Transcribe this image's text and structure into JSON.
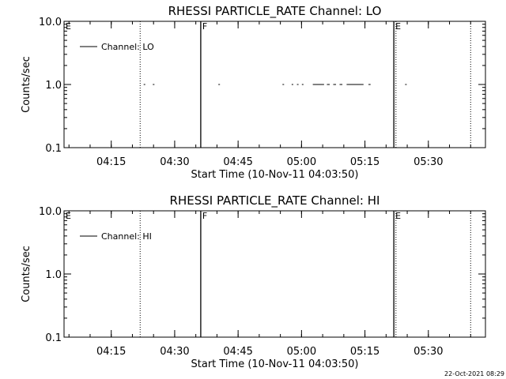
{
  "footer_timestamp": "22-Oct-2021 08:29",
  "chart_data": [
    {
      "type": "scatter",
      "title": "RHESSI PARTICLE_RATE Channel: LO",
      "xlabel": "Start Time (10-Nov-11 04:03:50)",
      "ylabel": "Counts/sec",
      "y_scale": "log",
      "ylim": [
        0.1,
        10.0
      ],
      "y_ticks": [
        "0.1",
        "1.0",
        "10.0"
      ],
      "xlim": [
        "04:03:50",
        "05:43:30"
      ],
      "x_ticks": [
        "04:15",
        "04:30",
        "04:45",
        "05:00",
        "05:15",
        "05:30"
      ],
      "legend": {
        "position": "top-left",
        "entries": [
          "Channel: LO"
        ]
      },
      "series": [
        {
          "name": "Channel: LO",
          "segments": [
            [
              "04:22:40",
              "04:22:55"
            ],
            [
              "04:24:50",
              "04:25:05"
            ],
            [
              "04:40:20",
              "04:40:35"
            ],
            [
              "04:55:30",
              "04:55:45"
            ],
            [
              "04:57:40",
              "04:57:55"
            ],
            [
              "04:58:55",
              "04:59:10"
            ],
            [
              "05:00:05",
              "05:00:20"
            ],
            [
              "05:02:40",
              "05:05:20"
            ],
            [
              "05:06:00",
              "05:06:40"
            ],
            [
              "05:07:30",
              "05:08:10"
            ],
            [
              "05:09:00",
              "05:09:40"
            ],
            [
              "05:10:40",
              "05:14:40"
            ],
            [
              "05:15:50",
              "05:16:20"
            ],
            [
              "05:24:30",
              "05:24:50"
            ]
          ],
          "value": 1.0
        }
      ],
      "markers": [
        {
          "time": "04:03:50",
          "style": "none",
          "label": "E"
        },
        {
          "time": "04:21:50",
          "style": "dotted",
          "label": ""
        },
        {
          "time": "04:36:10",
          "style": "solid",
          "label": "F"
        },
        {
          "time": "05:21:50",
          "style": "solid",
          "label": "E"
        },
        {
          "time": "05:22:20",
          "style": "dotted",
          "label": ""
        },
        {
          "time": "05:40:00",
          "style": "dotted",
          "label": ""
        }
      ]
    },
    {
      "type": "scatter",
      "title": "RHESSI PARTICLE_RATE Channel: HI",
      "xlabel": "Start Time (10-Nov-11 04:03:50)",
      "ylabel": "Counts/sec",
      "y_scale": "log",
      "ylim": [
        0.1,
        10.0
      ],
      "y_ticks": [
        "0.1",
        "1.0",
        "10.0"
      ],
      "xlim": [
        "04:03:50",
        "05:43:30"
      ],
      "x_ticks": [
        "04:15",
        "04:30",
        "04:45",
        "05:00",
        "05:15",
        "05:30"
      ],
      "legend": {
        "position": "top-left",
        "entries": [
          "Channel: HI"
        ]
      },
      "series": [
        {
          "name": "Channel: HI",
          "segments": [],
          "value": 1.0
        }
      ],
      "markers": [
        {
          "time": "04:03:50",
          "style": "none",
          "label": "E"
        },
        {
          "time": "04:21:50",
          "style": "dotted",
          "label": ""
        },
        {
          "time": "04:36:10",
          "style": "solid",
          "label": "F"
        },
        {
          "time": "05:21:50",
          "style": "solid",
          "label": "E"
        },
        {
          "time": "05:22:20",
          "style": "dotted",
          "label": ""
        },
        {
          "time": "05:40:00",
          "style": "dotted",
          "label": ""
        }
      ]
    }
  ]
}
